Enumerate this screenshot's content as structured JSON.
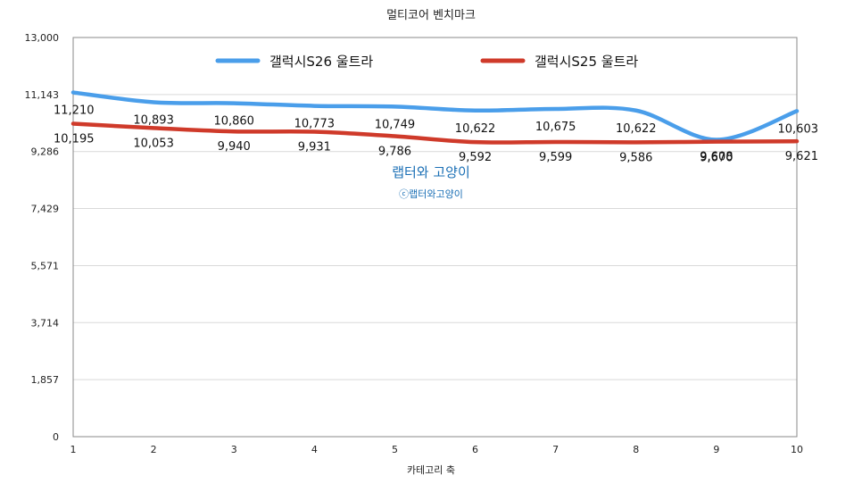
{
  "chart_data": {
    "type": "line",
    "title": "멀티코어 벤치마크",
    "xlabel": "카테고리 축",
    "ylabel": "",
    "x": [
      1,
      2,
      3,
      4,
      5,
      6,
      7,
      8,
      9,
      10
    ],
    "xlim": [
      1,
      10
    ],
    "ylim": [
      0,
      13000
    ],
    "yticks": [
      0,
      1857,
      3714,
      5571,
      7429,
      9286,
      11143,
      13000
    ],
    "ytick_labels": [
      "0",
      "1,857",
      "3,714",
      "5,571",
      "7,429",
      "9,286",
      "11,143",
      "13,000"
    ],
    "xtick_labels": [
      "1",
      "2",
      "3",
      "4",
      "5",
      "6",
      "7",
      "8",
      "9",
      "10"
    ],
    "grid": true,
    "legend_position": "top",
    "series": [
      {
        "name": "갤럭시S26 울트라",
        "color": "#4a9eea",
        "values": [
          11210,
          10893,
          10860,
          10773,
          10749,
          10622,
          10675,
          10622,
          9670,
          10603
        ],
        "labels": [
          "11,210",
          "10,893",
          "10,860",
          "10,773",
          "10,749",
          "10,622",
          "10,675",
          "10,622",
          "9,670",
          "10,603"
        ]
      },
      {
        "name": "갤럭시S25 울트라",
        "color": "#cf3a2a",
        "values": [
          10195,
          10053,
          9940,
          9931,
          9786,
          9592,
          9599,
          9586,
          9608,
          9621
        ],
        "labels": [
          "10,195",
          "10,053",
          "9,940",
          "9,931",
          "9,786",
          "9,592",
          "9,599",
          "9,586",
          "9,608",
          "9,621"
        ]
      }
    ],
    "watermark": {
      "main": "랩터와 고양이",
      "sub": "ⓒ랩터와고양이"
    }
  }
}
